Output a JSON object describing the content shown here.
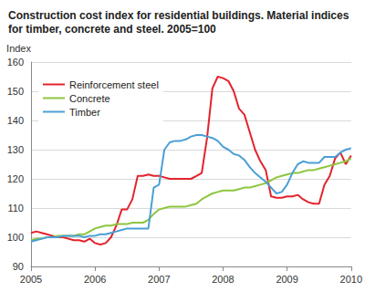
{
  "chart_data": {
    "type": "line",
    "title": "Construction cost index for residential buildings. Material indices for timber, concrete and steel. 2005=100",
    "y_label": "Index",
    "categories": [
      "2005",
      null,
      null,
      null,
      null,
      null,
      null,
      null,
      null,
      null,
      null,
      null,
      "2006",
      null,
      null,
      null,
      null,
      null,
      null,
      null,
      null,
      null,
      null,
      null,
      "2007",
      null,
      null,
      null,
      null,
      null,
      null,
      null,
      null,
      null,
      null,
      null,
      "2008",
      null,
      null,
      null,
      null,
      null,
      null,
      null,
      null,
      null,
      null,
      null,
      "2009",
      null,
      null,
      null,
      null,
      null,
      null,
      null,
      null,
      null,
      null,
      null,
      "2010"
    ],
    "series": [
      {
        "name": "Reinforcement steel",
        "color": "#e3232c",
        "values": [
          101.5,
          102,
          101.5,
          101,
          100.5,
          100,
          100,
          99.5,
          99,
          99,
          98.5,
          99.5,
          98,
          97.5,
          98,
          100,
          104,
          109.5,
          109.5,
          113,
          121,
          121,
          121.5,
          121,
          121,
          120.5,
          120,
          120,
          120,
          120,
          120,
          121,
          122,
          134,
          151,
          155,
          154.5,
          153.5,
          150,
          144,
          142,
          136,
          130,
          126,
          123,
          114,
          113.5,
          113.5,
          114,
          114,
          114.5,
          113,
          112,
          111.5,
          111.5,
          118,
          121,
          127,
          129,
          125,
          128
        ]
      },
      {
        "name": "Concrete",
        "color": "#8cc63e",
        "values": [
          99,
          99.5,
          99.5,
          100,
          100,
          100.5,
          100.5,
          100.5,
          100.5,
          101,
          101,
          102,
          103,
          103.5,
          104,
          104,
          104.5,
          104.5,
          104.5,
          105,
          105,
          105,
          106,
          108,
          109.5,
          110,
          110.5,
          110.5,
          110.5,
          110.5,
          111,
          111.5,
          113,
          114,
          115,
          115.5,
          116,
          116,
          116,
          116.5,
          117,
          117,
          117.5,
          118,
          118.5,
          119.5,
          120.5,
          121,
          121.5,
          122,
          122,
          122.5,
          123,
          123,
          123.5,
          124,
          124.5,
          125,
          125.5,
          126,
          127
        ]
      },
      {
        "name": "Timber",
        "color": "#4a9fd6",
        "values": [
          98.5,
          99,
          99.5,
          100,
          100,
          100,
          100.5,
          100.5,
          100.5,
          100.5,
          100,
          100.5,
          100.5,
          101,
          101,
          101.5,
          102,
          102.5,
          103,
          103,
          103,
          103,
          103,
          117,
          118,
          130,
          132.5,
          133,
          133,
          133.5,
          134.5,
          135,
          135,
          134.5,
          134,
          133,
          131,
          130,
          128.5,
          128,
          126.5,
          124,
          122,
          120.5,
          119,
          117,
          115,
          115.5,
          118,
          122,
          125,
          126,
          125.5,
          125.5,
          125.5,
          127.5,
          127.5,
          127.5,
          129,
          130,
          130.5
        ]
      }
    ],
    "ylim": [
      90,
      160
    ],
    "yticks": [
      90,
      100,
      110,
      120,
      130,
      140,
      150,
      160
    ],
    "grid": true,
    "legend": "upper left"
  }
}
